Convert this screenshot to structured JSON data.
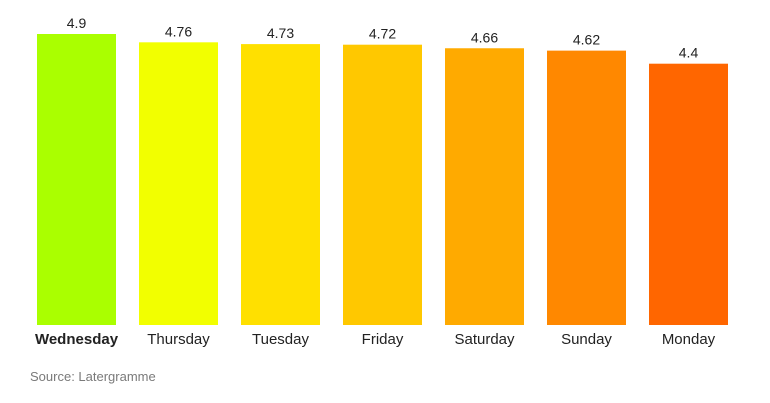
{
  "chart_data": {
    "type": "bar",
    "categories": [
      "Wednesday",
      "Thursday",
      "Tuesday",
      "Friday",
      "Saturday",
      "Sunday",
      "Monday"
    ],
    "values": [
      4.9,
      4.76,
      4.73,
      4.72,
      4.66,
      4.62,
      4.4
    ],
    "value_labels": [
      "4.9",
      "4.76",
      "4.73",
      "4.72",
      "4.66",
      "4.62",
      "4.4"
    ],
    "colors": [
      "#aaff00",
      "#f2ff00",
      "#ffe000",
      "#ffc800",
      "#ffaa00",
      "#ff8800",
      "#ff6600"
    ],
    "highlight_category": "Wednesday",
    "title": "",
    "xlabel": "",
    "ylabel": "",
    "ylim": [
      0,
      4.9
    ],
    "grid": false,
    "legend": "none"
  },
  "source": {
    "label": "Source: Latergramme"
  }
}
